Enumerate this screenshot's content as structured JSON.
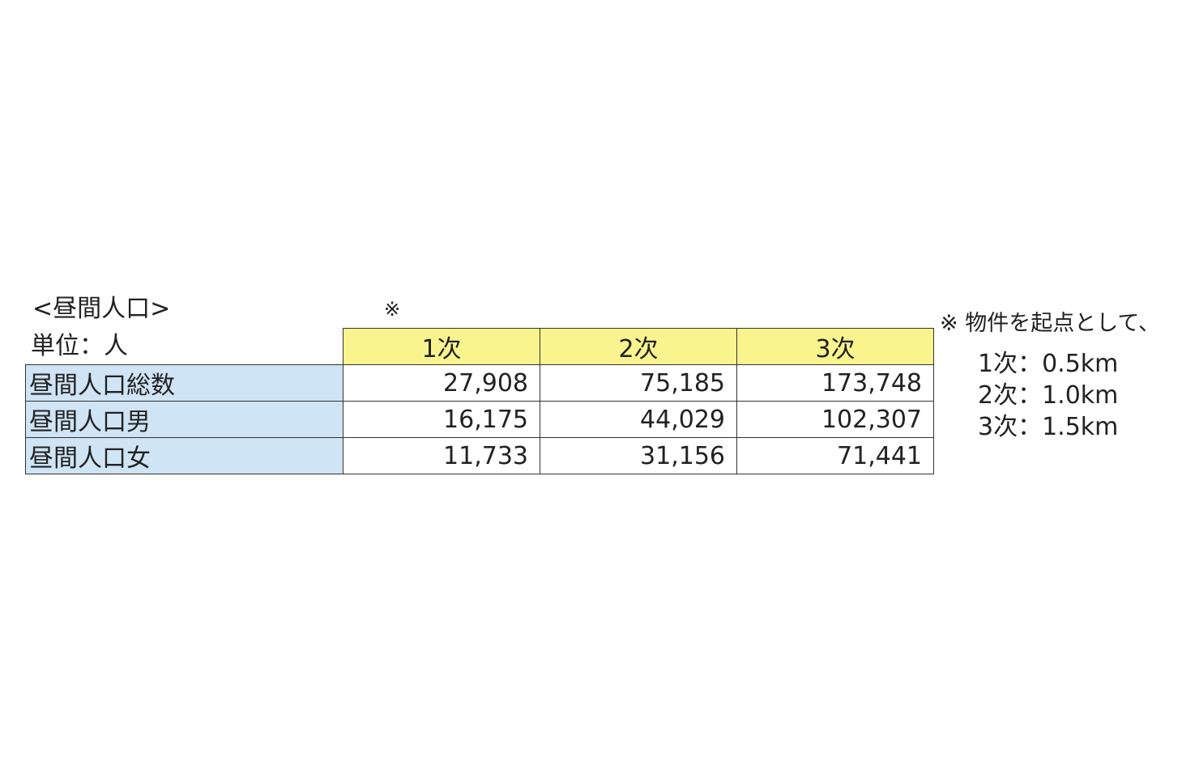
{
  "title": "<昼間人口>",
  "mark": "※",
  "unit": "単位：人",
  "table": {
    "header": [
      "1次",
      "2次",
      "3次"
    ],
    "rows": [
      {
        "label": "昼間人口総数",
        "values": [
          "27,908",
          "75,185",
          "173,748"
        ]
      },
      {
        "label": "昼間人口男",
        "values": [
          "16,175",
          "44,029",
          "102,307"
        ]
      },
      {
        "label": "昼間人口女",
        "values": [
          "11,733",
          "31,156",
          "71,441"
        ]
      }
    ]
  },
  "note": {
    "heading": "※ 物件を起点として、",
    "lines": [
      "1次：0.5km",
      "2次：1.0km",
      "3次：1.5km"
    ]
  }
}
